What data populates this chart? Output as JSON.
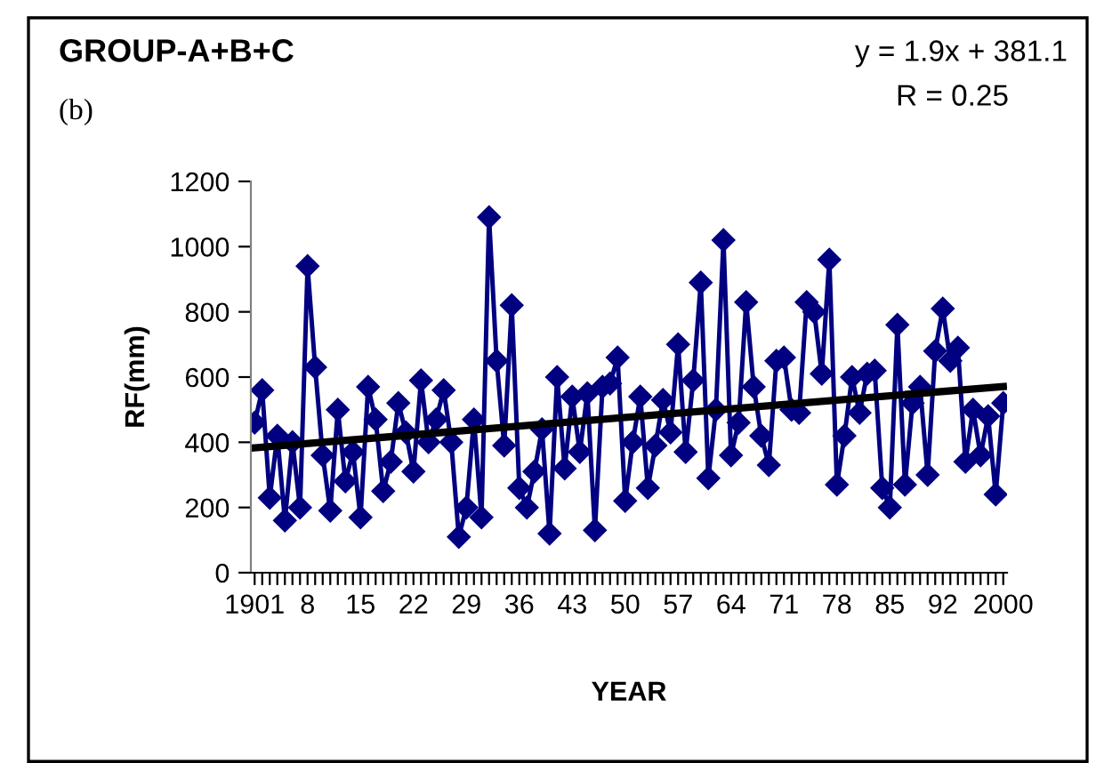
{
  "chart_data": {
    "type": "line",
    "title": "GROUP-A+B+C",
    "xlabel": "YEAR",
    "ylabel": "RF(mm)",
    "annotations": [
      "(b)",
      "y = 1.9x + 381.1",
      "R = 0.25"
    ],
    "categories": [
      "1901",
      null,
      null,
      null,
      null,
      null,
      null,
      "8",
      null,
      null,
      null,
      null,
      null,
      null,
      "15",
      null,
      null,
      null,
      null,
      null,
      null,
      "22",
      null,
      null,
      null,
      null,
      null,
      null,
      "29",
      null,
      null,
      null,
      null,
      null,
      null,
      "36",
      null,
      null,
      null,
      null,
      null,
      null,
      "43",
      null,
      null,
      null,
      null,
      null,
      null,
      "50",
      null,
      null,
      null,
      null,
      null,
      null,
      "57",
      null,
      null,
      null,
      null,
      null,
      null,
      "64",
      null,
      null,
      null,
      null,
      null,
      null,
      "71",
      null,
      null,
      null,
      null,
      null,
      null,
      "78",
      null,
      null,
      null,
      null,
      null,
      null,
      "85",
      null,
      null,
      null,
      null,
      null,
      null,
      "92",
      null,
      null,
      null,
      null,
      null,
      null,
      null,
      "2000"
    ],
    "series": [
      {
        "color": "#000080",
        "marker": "diamond",
        "values": [
          460,
          560,
          230,
          420,
          160,
          400,
          200,
          940,
          630,
          360,
          190,
          500,
          280,
          370,
          170,
          570,
          470,
          250,
          340,
          520,
          430,
          310,
          590,
          400,
          470,
          560,
          400,
          110,
          200,
          470,
          170,
          1090,
          650,
          390,
          820,
          260,
          200,
          310,
          440,
          120,
          600,
          320,
          540,
          370,
          550,
          130,
          570,
          580,
          660,
          220,
          400,
          540,
          260,
          390,
          530,
          430,
          700,
          370,
          590,
          890,
          290,
          500,
          1020,
          360,
          460,
          830,
          570,
          420,
          330,
          650,
          660,
          500,
          490,
          830,
          800,
          610,
          960,
          270,
          420,
          600,
          490,
          610,
          620,
          260,
          200,
          760,
          270,
          520,
          570,
          300,
          680,
          810,
          650,
          690,
          340,
          500,
          360,
          480,
          240,
          520
        ]
      },
      {
        "color": "#000000",
        "marker": "none",
        "values": [
          383,
          null,
          null,
          null,
          null,
          null,
          null,
          null,
          null,
          null,
          null,
          null,
          null,
          null,
          null,
          null,
          null,
          null,
          null,
          null,
          null,
          null,
          null,
          null,
          null,
          null,
          null,
          null,
          null,
          null,
          null,
          null,
          null,
          null,
          null,
          null,
          null,
          null,
          null,
          null,
          null,
          null,
          null,
          null,
          null,
          null,
          null,
          null,
          null,
          null,
          null,
          null,
          null,
          null,
          null,
          null,
          null,
          null,
          null,
          null,
          null,
          null,
          null,
          null,
          null,
          null,
          null,
          null,
          null,
          null,
          null,
          null,
          null,
          null,
          null,
          null,
          null,
          null,
          null,
          null,
          null,
          null,
          null,
          null,
          null,
          null,
          null,
          null,
          null,
          null,
          null,
          null,
          null,
          null,
          null,
          null,
          null,
          null,
          null,
          571
        ]
      }
    ],
    "ylim": [
      0,
      1200
    ],
    "yticks": [
      0,
      200,
      400,
      600,
      800,
      1000,
      1200
    ],
    "grid": false,
    "legend": false
  }
}
